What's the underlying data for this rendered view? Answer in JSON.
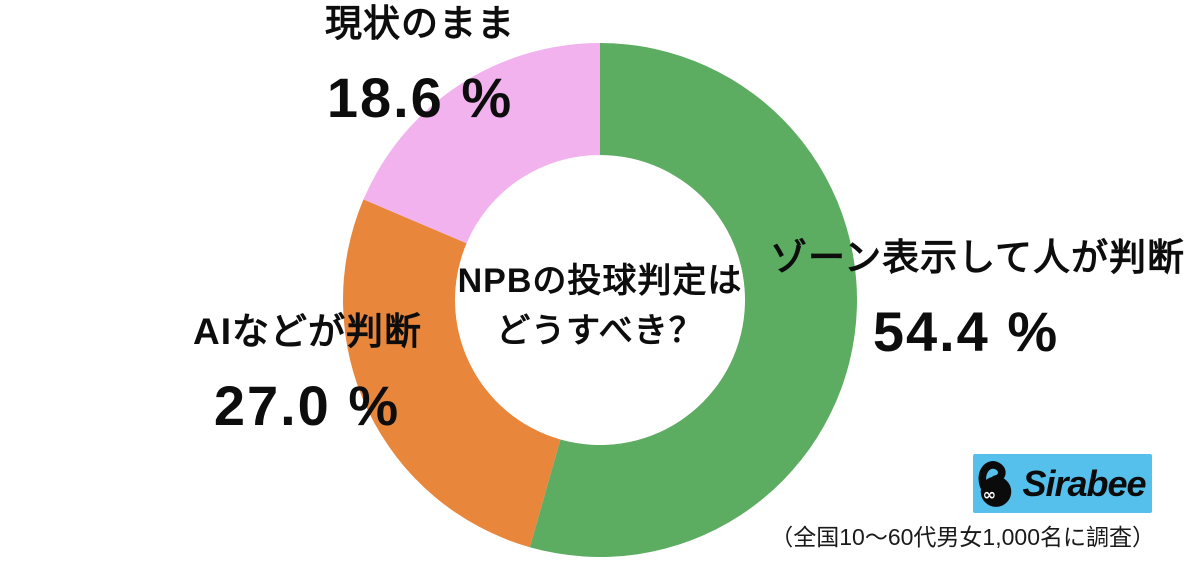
{
  "chart_data": {
    "type": "pie",
    "donut": true,
    "title": "NPBの投球判定はどうすべき？",
    "title_line1": "NPBの投球判定は",
    "title_line2": "どうすべき？",
    "start_angle": "top",
    "direction": "clockwise",
    "unit": "%",
    "segments": [
      {
        "label": "ゾーン表示して人が判断",
        "value": 54.4,
        "value_display": "54.4 %",
        "color": "#5cac61"
      },
      {
        "label": "AIなどが判断",
        "value": 27.0,
        "value_display": "27.0 %",
        "color": "#e8863c"
      },
      {
        "label": "現状のまま",
        "value": 18.6,
        "value_display": "18.6 %",
        "color": "#f2b2ee"
      }
    ]
  },
  "branding": {
    "logo_text": "Sirabee",
    "logo_bg_color": "#55c0eb",
    "caption": "（全国10〜60代男女1,000名に調査）"
  }
}
